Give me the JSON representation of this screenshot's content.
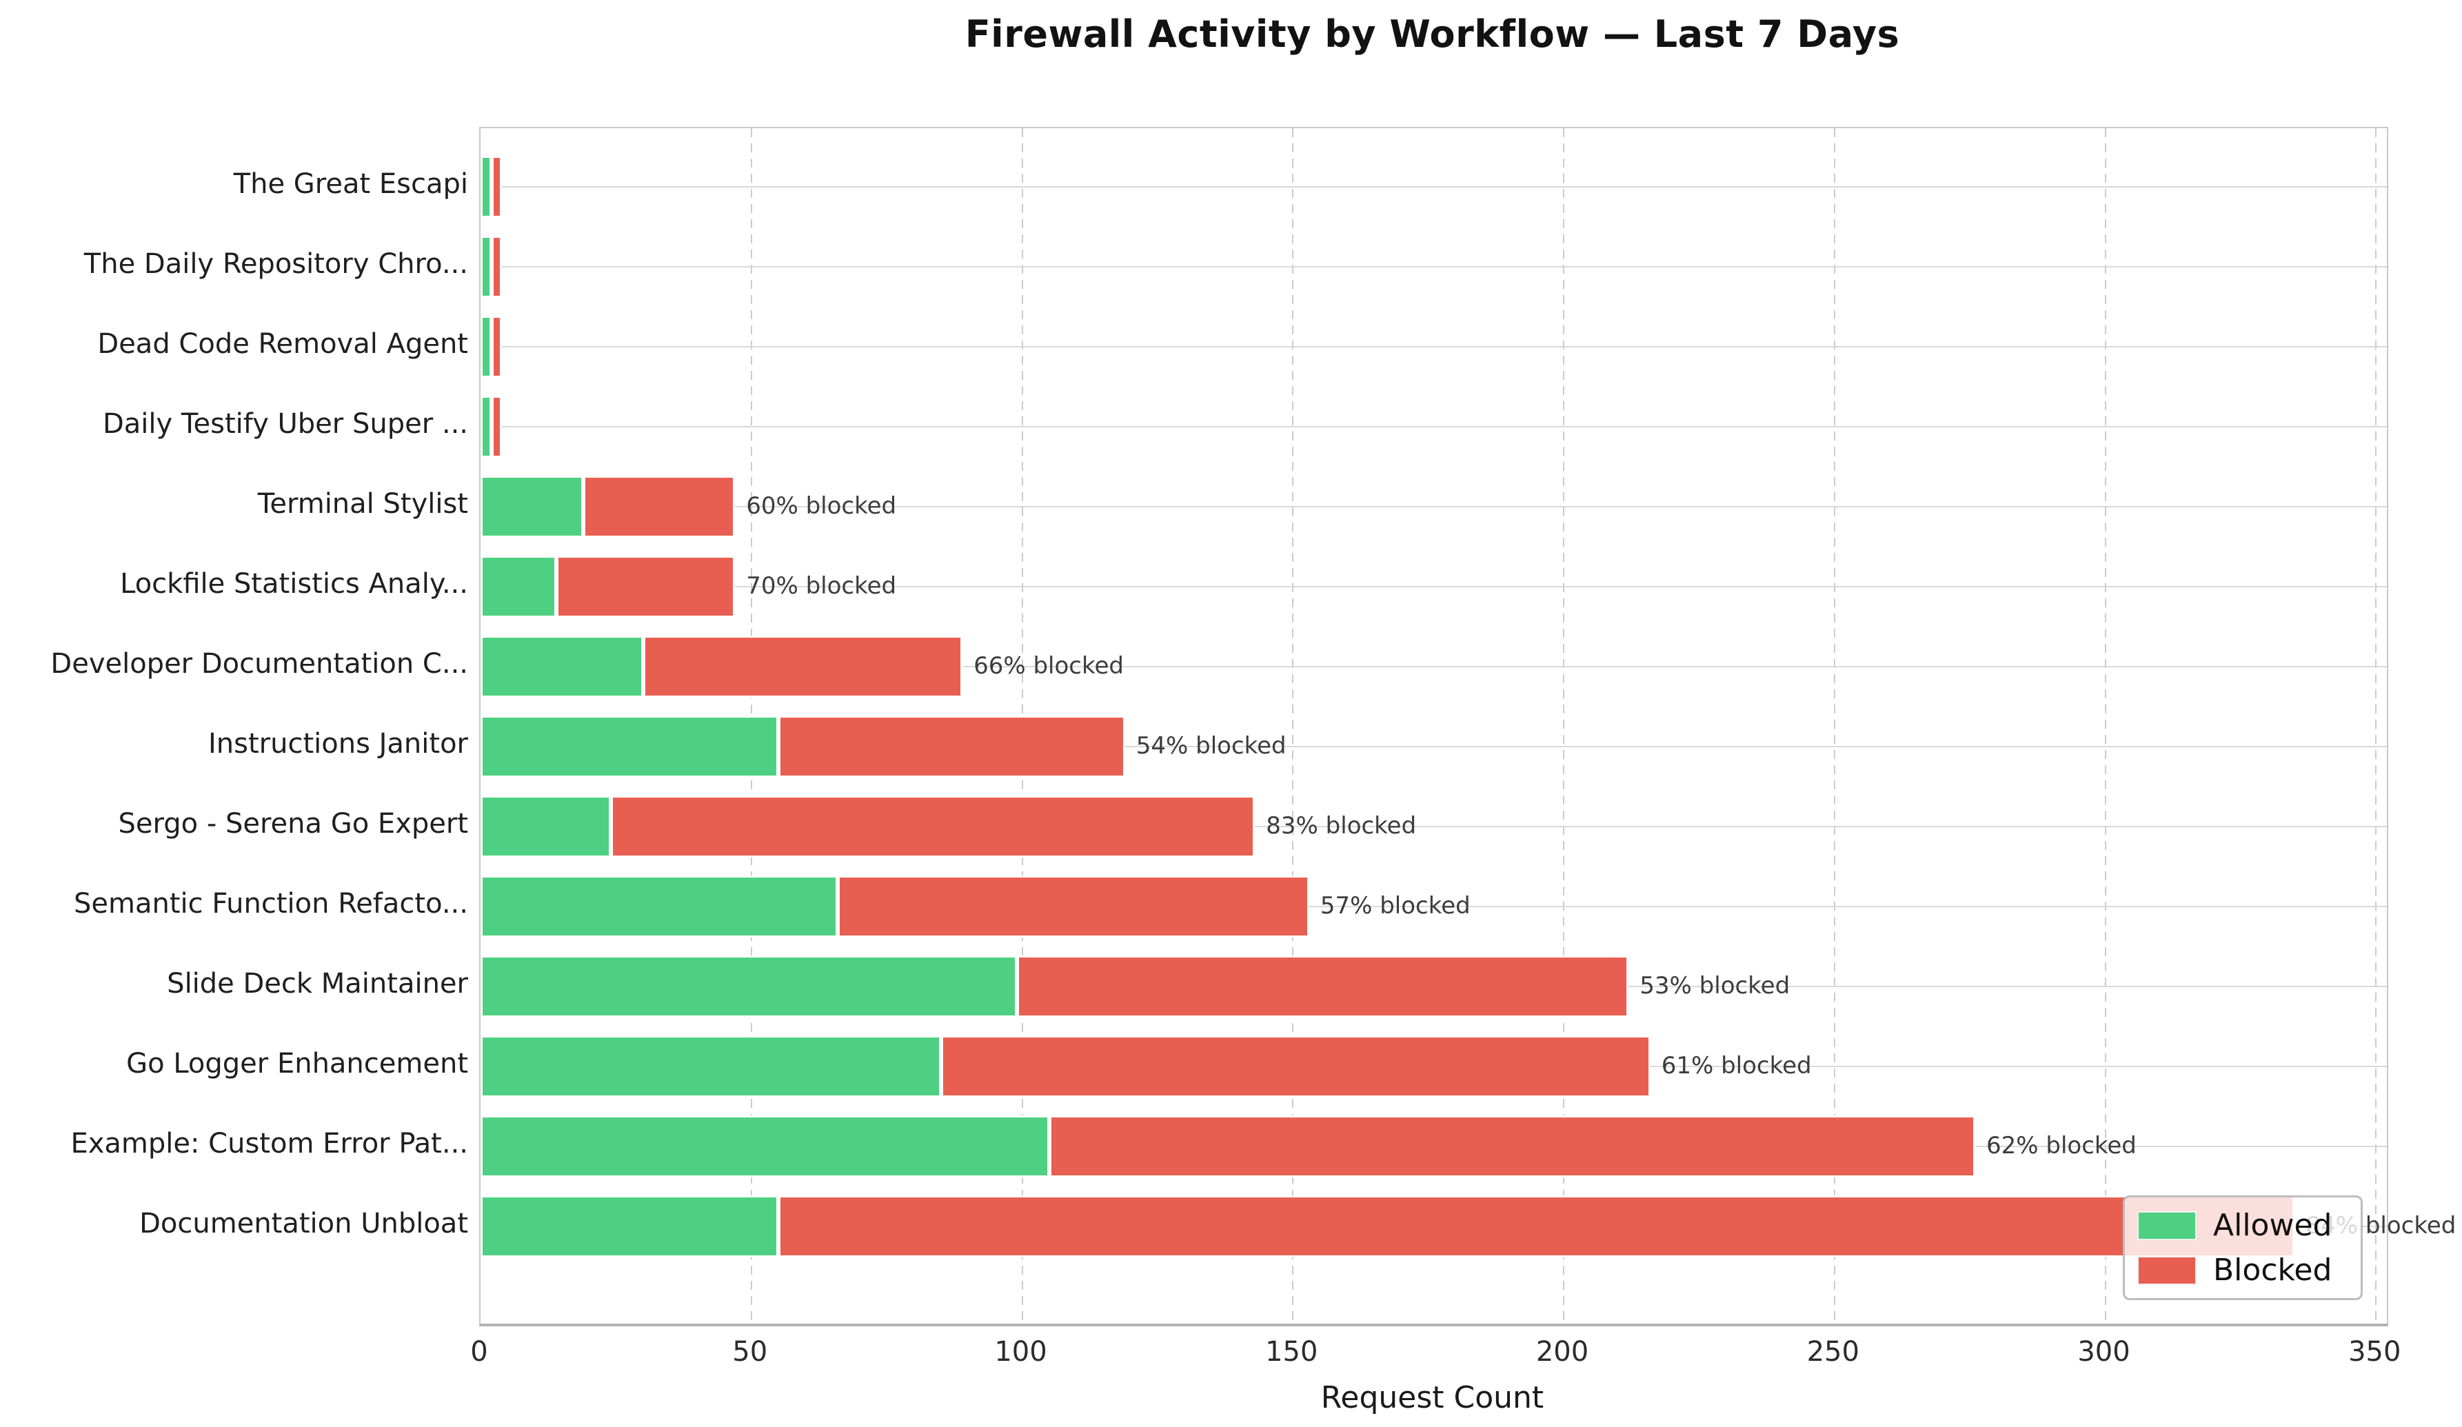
{
  "chart_data": {
    "type": "bar",
    "orientation": "horizontal",
    "stacked": true,
    "title": "Firewall Activity by Workflow — Last 7 Days",
    "xlabel": "Request Count",
    "x_ticks": [
      0,
      50,
      100,
      150,
      200,
      250,
      300,
      350
    ],
    "x_max": 352,
    "grid": {
      "vertical": "dashed",
      "horizontal": "solid"
    },
    "legend": {
      "position": "lower-right",
      "entries": [
        {
          "name": "allowed",
          "label": "Allowed",
          "color": "#4dd082"
        },
        {
          "name": "blocked",
          "label": "Blocked",
          "color": "#e85e50"
        }
      ]
    },
    "colors": {
      "allowed": "#4dd082",
      "blocked": "#e85e50",
      "bar_edge": "#ffffff"
    },
    "categories": [
      {
        "label": "The Great Escapi",
        "allowed": 2,
        "blocked": 2,
        "pct_label": null
      },
      {
        "label": "The Daily Repository Chro...",
        "allowed": 2,
        "blocked": 2,
        "pct_label": null
      },
      {
        "label": "Dead Code Removal Agent",
        "allowed": 2,
        "blocked": 2,
        "pct_label": null
      },
      {
        "label": "Daily Testify Uber Super ...",
        "allowed": 2,
        "blocked": 2,
        "pct_label": null
      },
      {
        "label": "Terminal Stylist",
        "allowed": 19,
        "blocked": 28,
        "pct_label": "60% blocked"
      },
      {
        "label": "Lockfile Statistics Analy...",
        "allowed": 14,
        "blocked": 33,
        "pct_label": "70% blocked"
      },
      {
        "label": "Developer Documentation C...",
        "allowed": 30,
        "blocked": 59,
        "pct_label": "66% blocked"
      },
      {
        "label": "Instructions Janitor",
        "allowed": 55,
        "blocked": 64,
        "pct_label": "54% blocked"
      },
      {
        "label": "Sergo - Serena Go Expert",
        "allowed": 24,
        "blocked": 119,
        "pct_label": "83% blocked"
      },
      {
        "label": "Semantic Function Refacto...",
        "allowed": 66,
        "blocked": 87,
        "pct_label": "57% blocked"
      },
      {
        "label": "Slide Deck Maintainer",
        "allowed": 99,
        "blocked": 113,
        "pct_label": "53% blocked"
      },
      {
        "label": "Go Logger Enhancement",
        "allowed": 85,
        "blocked": 131,
        "pct_label": "61% blocked"
      },
      {
        "label": "Example: Custom Error Pat...",
        "allowed": 105,
        "blocked": 171,
        "pct_label": "62% blocked"
      },
      {
        "label": "Documentation Unbloat",
        "allowed": 55,
        "blocked": 280,
        "pct_label": "84% blocked"
      }
    ]
  }
}
